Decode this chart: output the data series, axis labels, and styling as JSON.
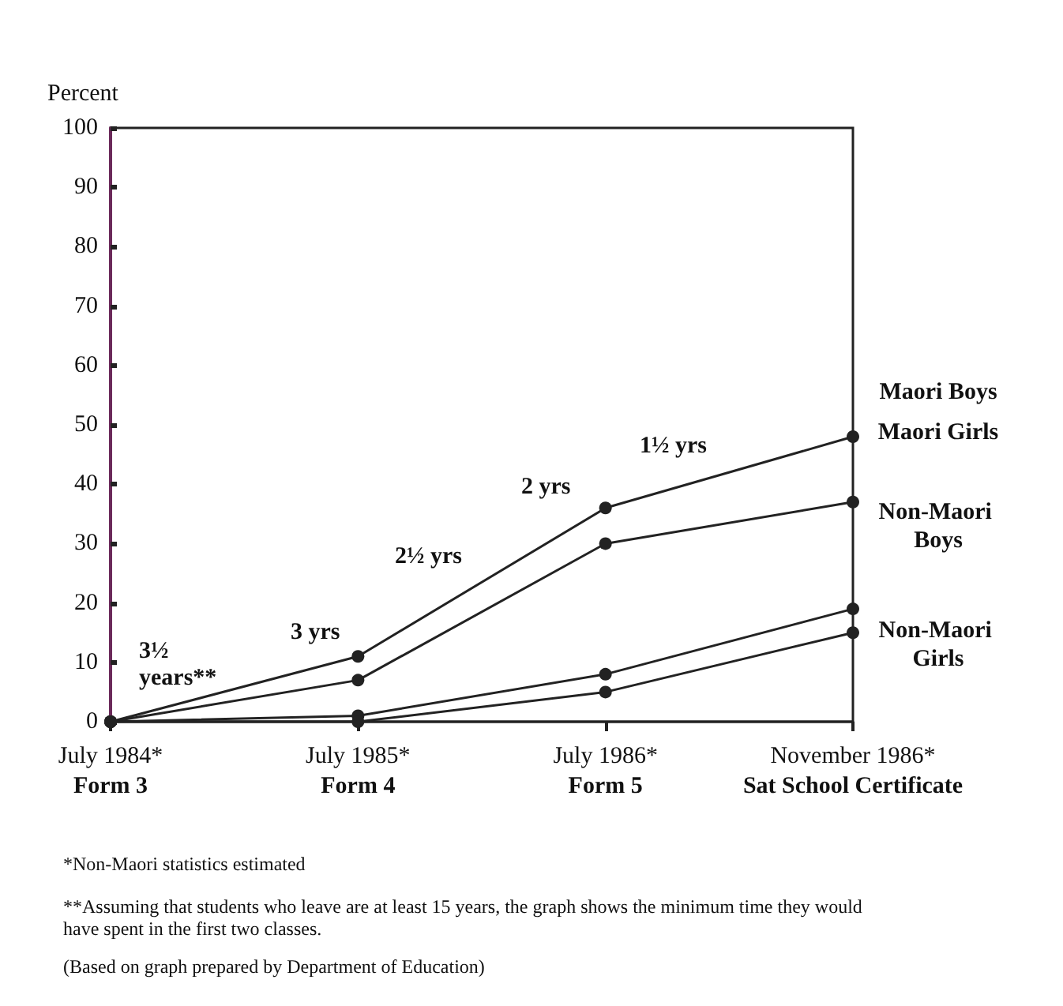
{
  "chart_data": {
    "type": "line",
    "ylabel": "Percent",
    "categories": [
      "July 1984*\nForm 3",
      "July 1985*\nForm 4",
      "July 1986*\nForm 5",
      "November 1986*\nSat School Certificate"
    ],
    "series": [
      {
        "name": "Maori Boys",
        "color": "#222222",
        "values": [
          0,
          11,
          36,
          48
        ]
      },
      {
        "name": "Maori Girls",
        "color": "#222222",
        "values": [
          0,
          7,
          30,
          37
        ]
      },
      {
        "name": "Non-Maori Boys",
        "color": "#222222",
        "values": [
          0,
          1,
          8,
          19
        ]
      },
      {
        "name": "Non-Maori Girls",
        "color": "#222222",
        "values": [
          0,
          0,
          5,
          15
        ]
      }
    ],
    "ylim": [
      0,
      100
    ],
    "yticks": [
      0,
      10,
      20,
      30,
      40,
      50,
      60,
      70,
      80,
      90,
      100
    ],
    "grid": false,
    "legend": false,
    "marker": "circle",
    "line_style": "solid",
    "annotations": [
      "3½ years**",
      "3 yrs",
      "2½ yrs",
      "2 yrs",
      "1½ yrs",
      "*Non-Maori statistics estimated",
      "**Assuming that students who leave are at least 15 years, the graph shows the minimum time they would have spent in the first two classes.",
      "(Based on graph prepared by Department of Education)"
    ]
  }
}
